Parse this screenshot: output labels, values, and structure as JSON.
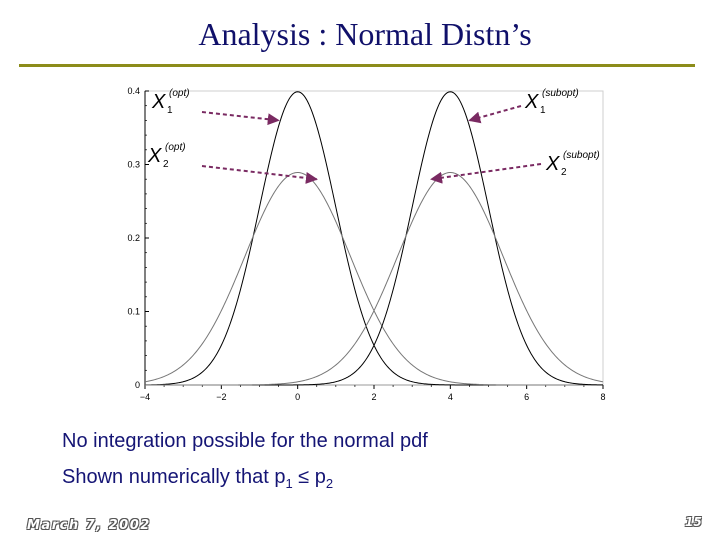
{
  "slide": {
    "title": "Analysis : Normal Distn’s",
    "bullets": [
      {
        "prefix": "No integration possible for the normal pdf",
        "p1_sub": "",
        "relation": "",
        "p2_sub": ""
      },
      {
        "prefix": "Shown numerically that p",
        "p1_sub": "1",
        "relation": " ≤ p",
        "p2_sub": "2"
      }
    ],
    "footer_date": "March 7, 2002",
    "page_number": "15"
  },
  "chart_data": {
    "type": "line",
    "title": "",
    "xlabel": "",
    "ylabel": "",
    "xlim": [
      -4,
      8
    ],
    "ylim": [
      0,
      0.4
    ],
    "x_ticks": [
      "−4",
      "−2",
      "0",
      "2",
      "4",
      "6",
      "8"
    ],
    "y_ticks": [
      "0",
      "0.1",
      "0.2",
      "0.3",
      "0.4"
    ],
    "series": [
      {
        "mean": 0,
        "sd": 1.0,
        "color": "#000000"
      },
      {
        "mean": 0,
        "sd": 1.38,
        "color": "#777777"
      },
      {
        "mean": 4,
        "sd": 1.0,
        "color": "#000000"
      },
      {
        "mean": 4,
        "sd": 1.38,
        "color": "#777777"
      }
    ],
    "annotations": [
      {
        "var": "X",
        "sub": "1",
        "sup": "(opt)",
        "points_to": {
          "x": -0.5,
          "y": 0.36
        }
      },
      {
        "var": "X",
        "sub": "2",
        "sup": "(opt)",
        "points_to": {
          "x": 0.5,
          "y": 0.28
        }
      },
      {
        "var": "X",
        "sub": "1",
        "sup": "(subopt)",
        "points_to": {
          "x": 4.5,
          "y": 0.36
        }
      },
      {
        "var": "X",
        "sub": "2",
        "sup": "(subopt)",
        "points_to": {
          "x": 3.5,
          "y": 0.28
        }
      }
    ],
    "arrow_color": "#7a2a62"
  }
}
